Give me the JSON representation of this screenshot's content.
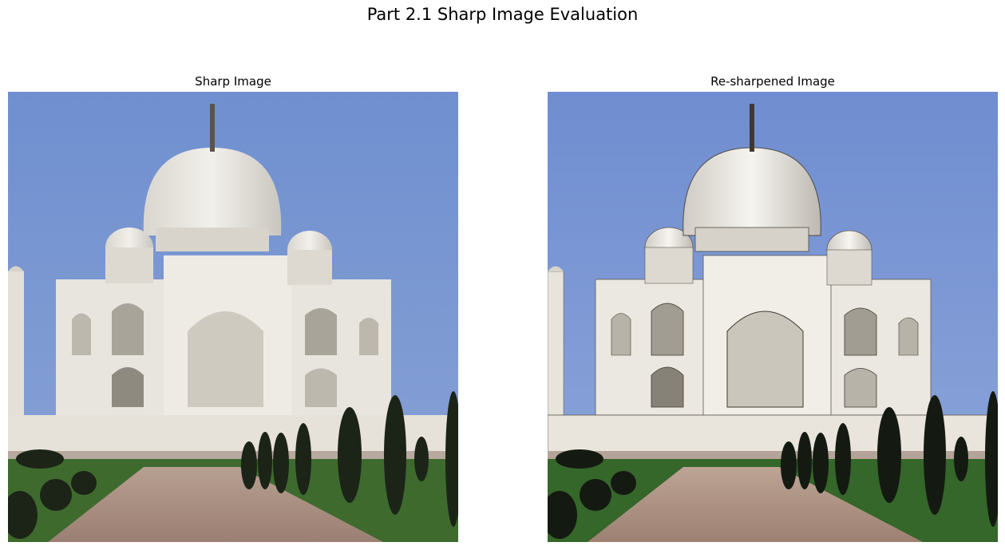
{
  "figure": {
    "suptitle": "Part 2.1 Sharp Image Evaluation"
  },
  "panels": [
    {
      "title": "Sharp Image"
    },
    {
      "title": "Re-sharpened Image"
    }
  ]
}
